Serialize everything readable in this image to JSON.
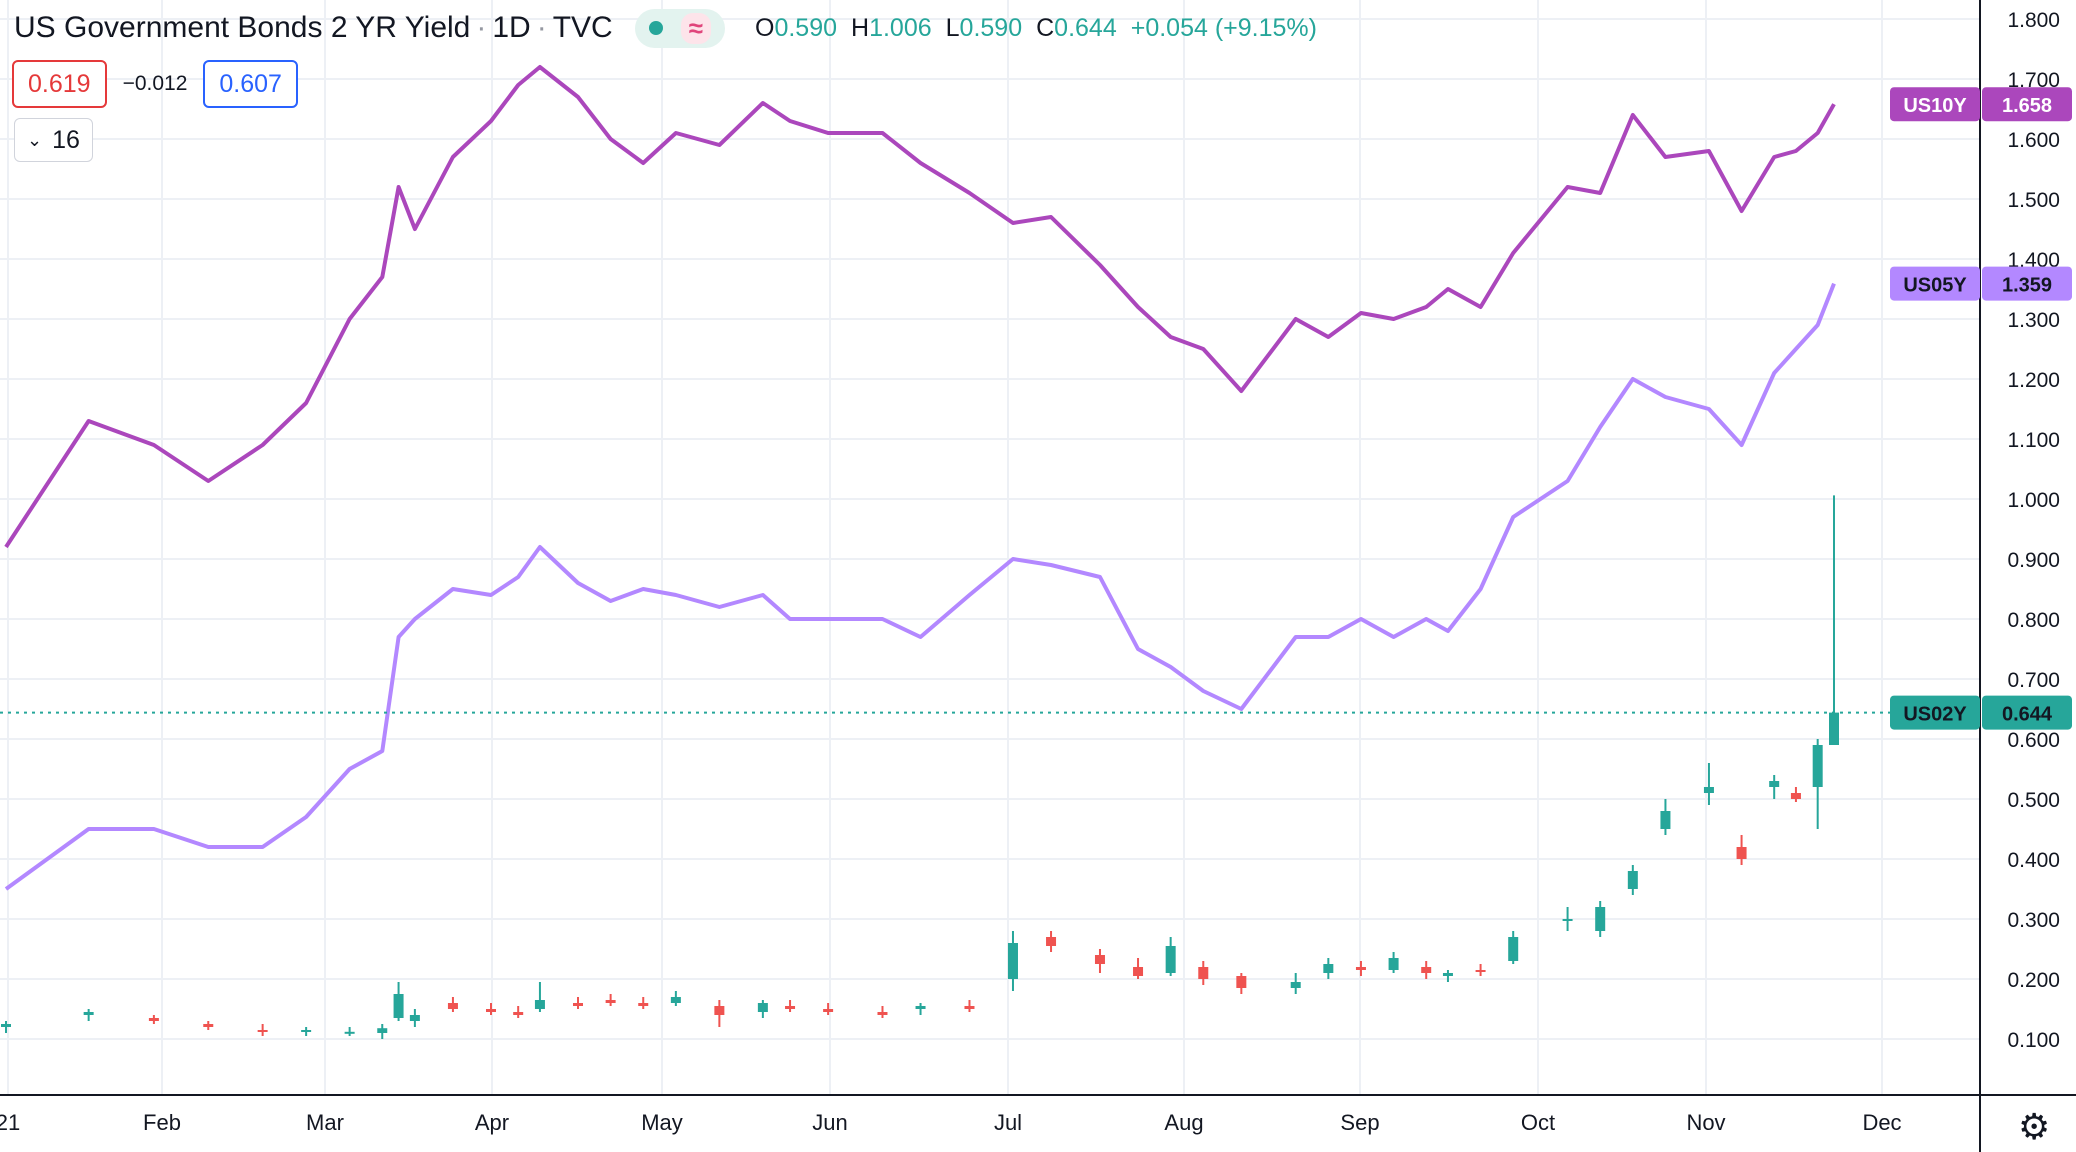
{
  "header": {
    "title": "US Government Bonds 2 YR Yield",
    "interval": "1D",
    "exchange": "TVC",
    "ohlc": [
      {
        "key": "O",
        "value": "0.590"
      },
      {
        "key": "H",
        "value": "1.006"
      },
      {
        "key": "L",
        "value": "0.590"
      },
      {
        "key": "C",
        "value": "0.644"
      }
    ],
    "change": "+0.054 (+9.15%)"
  },
  "trade": {
    "sell": "0.619",
    "spread": "−0.012",
    "buy": "0.607"
  },
  "volume_toggle": {
    "label": "16"
  },
  "colors": {
    "us10y": "#ab47bc",
    "us05y": "#b388ff",
    "up": "#26a69a",
    "down": "#ef5350",
    "grid": "#edf0f5"
  },
  "icons": {
    "settings": "gear-icon",
    "chevron": "chevron-down-icon"
  },
  "chart_data": {
    "type": "line",
    "title": "US Government Bonds 2 YR Yield",
    "ylim": [
      0.0,
      1.82
    ],
    "y_ticks": [
      "0.100",
      "0.200",
      "0.300",
      "0.400",
      "0.500",
      "0.600",
      "0.700",
      "0.800",
      "0.900",
      "1.000",
      "1.100",
      "1.200",
      "1.300",
      "1.400",
      "1.500",
      "1.600",
      "1.700",
      "1.800"
    ],
    "x_ticks": [
      "21",
      "Feb",
      "Mar",
      "Apr",
      "May",
      "Jun",
      "Jul",
      "Aug",
      "Sep",
      "Oct",
      "Nov",
      "Dec"
    ],
    "grid": true,
    "x": [
      "Jan 04",
      "Jan 11",
      "Jan 19",
      "Jan 25",
      "Feb 01",
      "Feb 08",
      "Feb 16",
      "Feb 22",
      "Feb 25",
      "Mar 01",
      "Mar 08",
      "Mar 15",
      "Mar 22",
      "Mar 29",
      "Apr 05",
      "Apr 12",
      "Apr 19",
      "Apr 26",
      "May 03",
      "May 10",
      "May 17",
      "May 24",
      "Jun 01",
      "Jun 07",
      "Jun 14",
      "Jun 21",
      "Jun 28",
      "Jul 06",
      "Jul 12",
      "Jul 19",
      "Jul 26",
      "Aug 02",
      "Aug 09",
      "Aug 16",
      "Aug 23",
      "Aug 30",
      "Sep 07",
      "Sep 13",
      "Sep 20",
      "Sep 27",
      "Oct 04",
      "Oct 11",
      "Oct 18",
      "Oct 25",
      "Nov 01",
      "Nov 08",
      "Nov 15",
      "Nov 19",
      "Nov 22",
      "Nov 24"
    ],
    "series": [
      {
        "name": "US10Y",
        "color": "#ab47bc",
        "last": "1.658",
        "values": [
          0.92,
          1.13,
          1.09,
          1.03,
          1.09,
          1.16,
          1.3,
          1.37,
          1.52,
          1.45,
          1.57,
          1.63,
          1.69,
          1.72,
          1.67,
          1.6,
          1.56,
          1.61,
          1.59,
          1.66,
          1.63,
          1.61,
          1.61,
          1.56,
          1.51,
          1.46,
          1.47,
          1.39,
          1.32,
          1.27,
          1.25,
          1.18,
          1.3,
          1.27,
          1.31,
          1.3,
          1.32,
          1.35,
          1.32,
          1.41,
          1.52,
          1.51,
          1.64,
          1.57,
          1.58,
          1.48,
          1.57,
          1.58,
          1.61,
          1.658
        ]
      },
      {
        "name": "US05Y",
        "color": "#b388ff",
        "last": "1.359",
        "values": [
          0.35,
          0.45,
          0.45,
          0.42,
          0.42,
          0.47,
          0.55,
          0.58,
          0.77,
          0.8,
          0.85,
          0.84,
          0.87,
          0.92,
          0.86,
          0.83,
          0.85,
          0.84,
          0.82,
          0.84,
          0.8,
          0.8,
          0.8,
          0.77,
          0.84,
          0.9,
          0.89,
          0.87,
          0.75,
          0.72,
          0.68,
          0.65,
          0.77,
          0.77,
          0.8,
          0.77,
          0.8,
          0.78,
          0.85,
          0.97,
          1.03,
          1.12,
          1.2,
          1.17,
          1.15,
          1.09,
          1.21,
          1.25,
          1.29,
          1.359
        ]
      },
      {
        "name": "US02Y",
        "color": "#26a69a",
        "last": "0.644",
        "candles": [
          {
            "x": "Jan 04",
            "o": 0.12,
            "h": 0.13,
            "l": 0.11,
            "c": 0.125
          },
          {
            "x": "Jan 11",
            "o": 0.14,
            "h": 0.15,
            "l": 0.13,
            "c": 0.145
          },
          {
            "x": "Jan 19",
            "o": 0.135,
            "h": 0.14,
            "l": 0.125,
            "c": 0.13
          },
          {
            "x": "Jan 25",
            "o": 0.125,
            "h": 0.13,
            "l": 0.115,
            "c": 0.12
          },
          {
            "x": "Feb 01",
            "o": 0.115,
            "h": 0.125,
            "l": 0.105,
            "c": 0.112
          },
          {
            "x": "Feb 08",
            "o": 0.112,
            "h": 0.12,
            "l": 0.105,
            "c": 0.115
          },
          {
            "x": "Feb 16",
            "o": 0.11,
            "h": 0.12,
            "l": 0.105,
            "c": 0.112
          },
          {
            "x": "Feb 22",
            "o": 0.11,
            "h": 0.125,
            "l": 0.1,
            "c": 0.118
          },
          {
            "x": "Feb 25",
            "o": 0.135,
            "h": 0.195,
            "l": 0.13,
            "c": 0.175
          },
          {
            "x": "Mar 01",
            "o": 0.13,
            "h": 0.15,
            "l": 0.12,
            "c": 0.14
          },
          {
            "x": "Mar 08",
            "o": 0.16,
            "h": 0.17,
            "l": 0.145,
            "c": 0.15
          },
          {
            "x": "Mar 15",
            "o": 0.15,
            "h": 0.16,
            "l": 0.14,
            "c": 0.145
          },
          {
            "x": "Mar 22",
            "o": 0.145,
            "h": 0.155,
            "l": 0.135,
            "c": 0.14
          },
          {
            "x": "Mar 29",
            "o": 0.15,
            "h": 0.195,
            "l": 0.145,
            "c": 0.165
          },
          {
            "x": "Apr 05",
            "o": 0.16,
            "h": 0.17,
            "l": 0.15,
            "c": 0.155
          },
          {
            "x": "Apr 12",
            "o": 0.165,
            "h": 0.175,
            "l": 0.155,
            "c": 0.16
          },
          {
            "x": "Apr 19",
            "o": 0.16,
            "h": 0.17,
            "l": 0.15,
            "c": 0.155
          },
          {
            "x": "Apr 26",
            "o": 0.16,
            "h": 0.18,
            "l": 0.155,
            "c": 0.17
          },
          {
            "x": "May 03",
            "o": 0.155,
            "h": 0.165,
            "l": 0.12,
            "c": 0.14
          },
          {
            "x": "May 10",
            "o": 0.145,
            "h": 0.165,
            "l": 0.135,
            "c": 0.16
          },
          {
            "x": "May 17",
            "o": 0.155,
            "h": 0.165,
            "l": 0.145,
            "c": 0.15
          },
          {
            "x": "May 24",
            "o": 0.15,
            "h": 0.16,
            "l": 0.14,
            "c": 0.145
          },
          {
            "x": "Jun 01",
            "o": 0.145,
            "h": 0.155,
            "l": 0.135,
            "c": 0.14
          },
          {
            "x": "Jun 07",
            "o": 0.15,
            "h": 0.16,
            "l": 0.14,
            "c": 0.155
          },
          {
            "x": "Jun 14",
            "o": 0.155,
            "h": 0.165,
            "l": 0.145,
            "c": 0.15
          },
          {
            "x": "Jun 21",
            "o": 0.2,
            "h": 0.28,
            "l": 0.18,
            "c": 0.26
          },
          {
            "x": "Jun 28",
            "o": 0.27,
            "h": 0.28,
            "l": 0.245,
            "c": 0.255
          },
          {
            "x": "Jul 06",
            "o": 0.24,
            "h": 0.25,
            "l": 0.21,
            "c": 0.225
          },
          {
            "x": "Jul 12",
            "o": 0.22,
            "h": 0.235,
            "l": 0.2,
            "c": 0.205
          },
          {
            "x": "Jul 19",
            "o": 0.21,
            "h": 0.27,
            "l": 0.205,
            "c": 0.255
          },
          {
            "x": "Jul 26",
            "o": 0.22,
            "h": 0.23,
            "l": 0.19,
            "c": 0.2
          },
          {
            "x": "Aug 02",
            "o": 0.205,
            "h": 0.21,
            "l": 0.175,
            "c": 0.185
          },
          {
            "x": "Aug 09",
            "o": 0.185,
            "h": 0.21,
            "l": 0.175,
            "c": 0.195
          },
          {
            "x": "Aug 16",
            "o": 0.21,
            "h": 0.235,
            "l": 0.2,
            "c": 0.225
          },
          {
            "x": "Aug 23",
            "o": 0.22,
            "h": 0.23,
            "l": 0.205,
            "c": 0.215
          },
          {
            "x": "Aug 30",
            "o": 0.215,
            "h": 0.245,
            "l": 0.21,
            "c": 0.235
          },
          {
            "x": "Sep 07",
            "o": 0.22,
            "h": 0.23,
            "l": 0.2,
            "c": 0.21
          },
          {
            "x": "Sep 13",
            "o": 0.205,
            "h": 0.215,
            "l": 0.195,
            "c": 0.21
          },
          {
            "x": "Sep 20",
            "o": 0.215,
            "h": 0.225,
            "l": 0.205,
            "c": 0.212
          },
          {
            "x": "Sep 27",
            "o": 0.23,
            "h": 0.28,
            "l": 0.225,
            "c": 0.27
          },
          {
            "x": "Oct 04",
            "o": 0.3,
            "h": 0.32,
            "l": 0.28,
            "c": 0.3
          },
          {
            "x": "Oct 11",
            "o": 0.28,
            "h": 0.33,
            "l": 0.27,
            "c": 0.32
          },
          {
            "x": "Oct 18",
            "o": 0.35,
            "h": 0.39,
            "l": 0.34,
            "c": 0.38
          },
          {
            "x": "Oct 25",
            "o": 0.45,
            "h": 0.5,
            "l": 0.44,
            "c": 0.48
          },
          {
            "x": "Nov 01",
            "o": 0.51,
            "h": 0.56,
            "l": 0.49,
            "c": 0.52
          },
          {
            "x": "Nov 08",
            "o": 0.42,
            "h": 0.44,
            "l": 0.39,
            "c": 0.4
          },
          {
            "x": "Nov 15",
            "o": 0.52,
            "h": 0.54,
            "l": 0.5,
            "c": 0.53
          },
          {
            "x": "Nov 19",
            "o": 0.51,
            "h": 0.52,
            "l": 0.495,
            "c": 0.5
          },
          {
            "x": "Nov 22",
            "o": 0.52,
            "h": 0.6,
            "l": 0.45,
            "c": 0.59
          },
          {
            "x": "Nov 24",
            "o": 0.59,
            "h": 1.006,
            "l": 0.59,
            "c": 0.644
          }
        ]
      }
    ]
  }
}
